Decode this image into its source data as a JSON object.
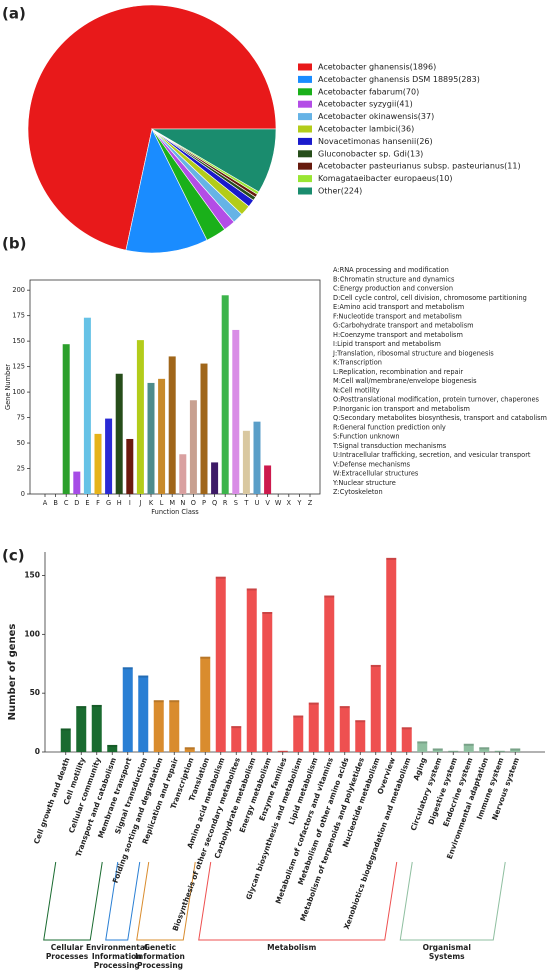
{
  "chart_data": [
    {
      "type": "pie",
      "panel": "(a)",
      "categories": [
        "Acetobacter ghanensis(1896)",
        "Acetobacter ghanensis DSM 18895(283)",
        "Acetobacter fabarum(70)",
        "Acetobacter syzygii(41)",
        "Acetobacter okinawensis(37)",
        "Acetobacter lambici(36)",
        "Novacetimonas hansenii(26)",
        "Gluconobacter sp. Gdi(13)",
        "Acetobacter pasteurianus subsp. pasteurianus(11)",
        "Komagataeibacter europaeus(10)",
        "Other(224)"
      ],
      "values": [
        1896,
        283,
        70,
        41,
        37,
        36,
        26,
        13,
        11,
        10,
        224
      ],
      "colors": [
        "#e8191a",
        "#1a8cff",
        "#1ab01a",
        "#b34de6",
        "#66b3e6",
        "#b3cc1a",
        "#1a1acc",
        "#264d1a",
        "#661a0d",
        "#99e633",
        "#1a8c6e"
      ]
    },
    {
      "type": "bar",
      "panel": "(b)",
      "x_label": "Function Class",
      "y_label": "Gene Number",
      "categories": [
        "A",
        "B",
        "C",
        "D",
        "E",
        "F",
        "G",
        "H",
        "I",
        "J",
        "K",
        "L",
        "M",
        "N",
        "O",
        "P",
        "Q",
        "R",
        "S",
        "T",
        "U",
        "V",
        "W",
        "X",
        "Y",
        "Z"
      ],
      "values": [
        0,
        0,
        147,
        22,
        173,
        59,
        74,
        118,
        54,
        151,
        109,
        113,
        135,
        39,
        92,
        128,
        31,
        195,
        161,
        62,
        71,
        28,
        0,
        0,
        0,
        0
      ],
      "colors": [
        "#888888",
        "#888888",
        "#2ca02c",
        "#a64ce6",
        "#66c2e6",
        "#e6b31a",
        "#2a2ad4",
        "#264d1a",
        "#6b1a0d",
        "#b3cc1a",
        "#4d8c8c",
        "#c88a2a",
        "#a0661a",
        "#d9a0a0",
        "#c8a090",
        "#a0661a",
        "#3d1a66",
        "#3cb44b",
        "#d98ce6",
        "#d9c8a0",
        "#5a9ec8",
        "#cc1a4d",
        "#888888",
        "#888888",
        "#888888",
        "#888888"
      ],
      "ylim": [
        0,
        210
      ],
      "yticks": [
        0,
        25,
        50,
        75,
        100,
        125,
        150,
        175,
        200
      ],
      "legend_text": [
        "A:RNA processing and modification",
        "B:Chromatin structure and dynamics",
        "C:Energy production and conversion",
        "D:Cell cycle control, cell division, chromosome partitioning",
        "E:Amino acid transport and metabolism",
        "F:Nucleotide transport and metabolism",
        "G:Carbohydrate transport and metabolism",
        "H:Coenzyme transport and metabolism",
        "I:Lipid transport and metabolism",
        "J:Translation, ribosomal structure and biogenesis",
        "K:Transcription",
        "L:Replication, recombination and repair",
        "M:Cell wall/membrane/envelope biogenesis",
        "N:Cell motility",
        "O:Posttranslational modification, protein turnover, chaperones",
        "P:Inorganic ion transport and metabolism",
        "Q:Secondary metabolites biosynthesis, transport and catabolism",
        "R:General function prediction only",
        "S:Function unknown",
        "T:Signal transduction mechanisms",
        "U:Intracellular trafficking, secretion, and vesicular transport",
        "V:Defense mechanisms",
        "W:Extracellular structures",
        "Y:Nuclear structure",
        "Z:Cytoskeleton"
      ]
    },
    {
      "type": "groupbar",
      "panel": "(c)",
      "y_label": "Number of genes",
      "ylim": [
        0,
        170
      ],
      "yticks": [
        0,
        50,
        100,
        150
      ],
      "groups": [
        {
          "name": "Cellular Processes",
          "color": "#1a6b30",
          "categories": [
            "Cell growth and death",
            "Cell motility",
            "Cellular community",
            "Transport and catabolism"
          ],
          "values": [
            20,
            39,
            40,
            6
          ]
        },
        {
          "name": "Environmental Information Processing",
          "color": "#2a7fd4",
          "categories": [
            "Membrane transport",
            "Signal transduction"
          ],
          "values": [
            72,
            65
          ]
        },
        {
          "name": "Genetic Information Processing",
          "color": "#d98c2e",
          "categories": [
            "Folding sorting and degradation",
            "Replication and repair",
            "Transcription",
            "Translation"
          ],
          "values": [
            44,
            44,
            4,
            81
          ]
        },
        {
          "name": "Metabolism",
          "color": "#ee5050",
          "categories": [
            "Amino acid metabolism",
            "Biosynthesis of other secondary metabolites",
            "Carbohydrate metabolism",
            "Energy metabolism",
            "Enzyme families",
            "Glycan biosynthesis and metabolism",
            "Lipid metabolism",
            "Metabolism of cofactors and vitamins",
            "Metabolism of other amino acids",
            "Metabolism of terpenoids and polyketides",
            "Nucleotide metabolism",
            "Overview",
            "Xenobiotics biodegradation and metabolism"
          ],
          "values": [
            149,
            22,
            139,
            119,
            1,
            31,
            42,
            133,
            39,
            27,
            74,
            165,
            21
          ]
        },
        {
          "name": "Organismal Systems",
          "color": "#8fbfa0",
          "categories": [
            "Aging",
            "Circulatory system",
            "Digestive system",
            "Endocrine system",
            "Environmental adaptation",
            "Immune system",
            "Nervous system"
          ],
          "values": [
            9,
            3,
            1,
            7,
            4,
            1,
            3
          ]
        }
      ]
    }
  ]
}
